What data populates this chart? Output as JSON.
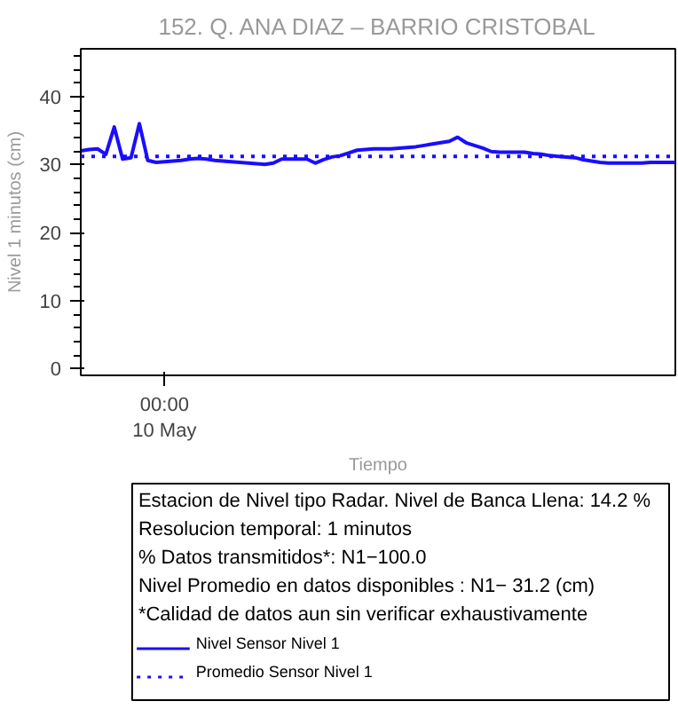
{
  "chart_data": {
    "type": "line",
    "title": "152. Q. ANA DIAZ – BARRIO CRISTOBAL",
    "xlabel": "Tiempo",
    "ylabel": "Nivel 1 minutos (cm)",
    "categories": [
      null,
      null,
      null,
      null,
      null,
      null,
      null,
      null,
      null,
      null,
      "00:00\n10 May",
      null,
      null,
      null,
      null,
      null,
      null,
      null,
      null,
      null,
      null,
      null,
      null,
      null,
      null,
      null,
      null,
      null,
      null,
      null,
      null,
      null,
      null,
      null,
      null,
      null,
      null,
      null,
      null,
      null,
      null,
      null,
      null,
      null,
      null,
      null,
      null,
      null,
      null,
      null,
      null,
      null,
      null,
      null,
      null,
      null,
      null,
      null,
      null,
      null,
      null,
      null,
      null,
      null,
      null,
      null,
      null,
      null,
      null,
      null,
      null,
      null
    ],
    "series": [
      {
        "name": "Nivel Sensor Nivel 1",
        "color": "#1a0dff",
        "values": [
          32.0,
          32.2,
          32.3,
          31.5,
          35.5,
          30.8,
          31.0,
          36.0,
          30.6,
          30.3,
          30.4,
          30.5,
          30.6,
          30.8,
          30.9,
          30.8,
          30.6,
          30.5,
          30.4,
          30.3,
          30.2,
          30.1,
          30.0,
          30.2,
          30.8,
          30.8,
          30.8,
          30.8,
          30.2,
          30.7,
          31.1,
          31.3,
          31.7,
          32.1,
          32.2,
          32.3,
          32.3,
          32.3,
          32.4,
          32.5,
          32.6,
          32.8,
          33.0,
          33.2,
          33.4,
          34.0,
          33.2,
          32.8,
          32.4,
          31.9,
          31.8,
          31.8,
          31.8,
          31.8,
          31.6,
          31.5,
          31.3,
          31.2,
          31.1,
          31.0,
          30.7,
          30.5,
          30.3,
          30.2,
          30.2,
          30.2,
          30.2,
          30.2,
          30.3,
          30.3,
          30.3,
          30.3
        ]
      }
    ],
    "ref_lines": [
      {
        "axis": "y",
        "value": 31.2,
        "label": "Promedio Sensor Nivel 1",
        "color": "#1a0dff",
        "line_style": "dotted"
      }
    ],
    "ylim": [
      -1,
      47
    ],
    "yticks": [
      0,
      10,
      20,
      30,
      40
    ],
    "grid": false,
    "legend": "bottom",
    "line_style": "solid",
    "marker": "none",
    "annotations": [
      "Estacion de Nivel tipo Radar. Nivel de Banca Llena: 14.2 %",
      "Resolucion temporal: 1 minutos",
      "% Datos transmitidos*: N1−100.0",
      "Nivel Promedio en datos disponibles : N1− 31.2 (cm)",
      "*Calidad de datos aun sin verificar exhaustivamente"
    ]
  }
}
